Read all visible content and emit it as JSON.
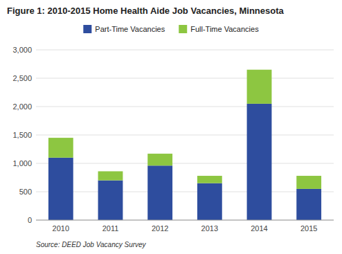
{
  "chart_data": {
    "type": "bar",
    "title": "Figure 1: 2010-2015 Home Health Aide Job Vacancies, Minnesota",
    "categories": [
      "2010",
      "2011",
      "2012",
      "2013",
      "2014",
      "2015"
    ],
    "series": [
      {
        "name": "Part-Time Vacancies",
        "color": "#2e4d9e",
        "values": [
          1100,
          700,
          960,
          650,
          2050,
          550
        ]
      },
      {
        "name": "Full-Time Vacancies",
        "color": "#8dc641",
        "values": [
          350,
          160,
          210,
          130,
          600,
          230
        ]
      }
    ],
    "stacked": true,
    "ylim": [
      0,
      3000
    ],
    "yticks": [
      0,
      500,
      {
        "value": 1000,
        "label": "1,000"
      },
      {
        "value": 1500,
        "label": "1,500"
      },
      {
        "value": 2000,
        "label": "2,000"
      },
      {
        "value": 2500,
        "label": "2,500"
      },
      {
        "value": 3000,
        "label": "3,000"
      }
    ],
    "grid": true,
    "legend": "top",
    "annotations": [
      "Source: DEED Job Vacancy Survey"
    ]
  }
}
